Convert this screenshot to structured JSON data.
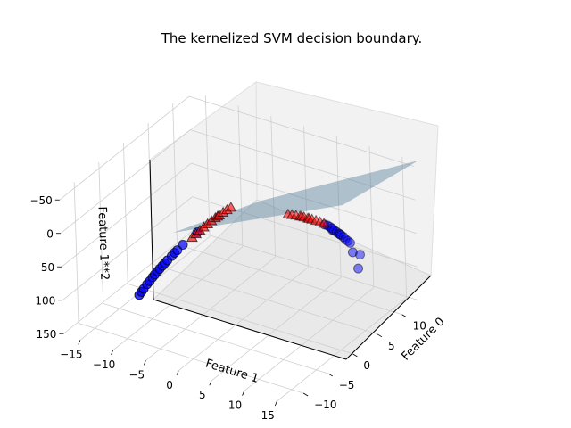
{
  "chart_data": {
    "type": "scatter3d",
    "title": "The kernelized SVM decision boundary.",
    "xlabel": "Feature 0",
    "ylabel": "Feature 1",
    "zlabel": "Feature 1**2",
    "x_ticks": [
      "−10",
      "−5",
      "0",
      "5",
      "10"
    ],
    "y_ticks": [
      "−15",
      "−10",
      "−5",
      "0",
      "5",
      "10",
      "15"
    ],
    "z_ticks": [
      "−50",
      "0",
      "50",
      "100",
      "150"
    ],
    "zlim": [
      -50,
      150
    ],
    "z_inverted": true,
    "grid": true,
    "surface": {
      "label": "decision boundary plane",
      "color": "#4a7595"
    },
    "series": [
      {
        "class": 0,
        "marker": "circle",
        "color": "#0000ff",
        "points": [
          [
            -7.2,
            -10.2,
            104.0
          ],
          [
            -7.0,
            -10.0,
            100.0
          ],
          [
            -6.8,
            -9.8,
            96.0
          ],
          [
            -6.5,
            -9.5,
            90.0
          ],
          [
            -6.2,
            -9.3,
            86.5
          ],
          [
            -6.0,
            -9.0,
            81.0
          ],
          [
            -5.8,
            -8.8,
            77.4
          ],
          [
            -5.5,
            -8.6,
            74.0
          ],
          [
            -5.3,
            -8.4,
            70.6
          ],
          [
            -5.0,
            -8.2,
            67.2
          ],
          [
            -4.8,
            -8.0,
            64.0
          ],
          [
            -4.5,
            -7.8,
            60.8
          ],
          [
            -4.0,
            -7.5,
            56.3
          ],
          [
            -3.8,
            -7.2,
            51.8
          ],
          [
            -3.5,
            -7.0,
            49.0
          ],
          [
            -3.0,
            -6.5,
            42.3
          ],
          [
            -2.0,
            -5.0,
            25.0
          ],
          [
            8.6,
            6.4,
            41.0
          ],
          [
            8.9,
            6.6,
            43.6
          ],
          [
            9.1,
            6.8,
            46.2
          ],
          [
            9.3,
            7.0,
            49.0
          ],
          [
            9.4,
            7.2,
            51.8
          ],
          [
            9.6,
            7.4,
            54.8
          ],
          [
            9.8,
            7.6,
            57.8
          ],
          [
            10.0,
            7.8,
            60.8
          ],
          [
            10.2,
            8.0,
            64.0
          ],
          [
            10.3,
            8.2,
            67.2
          ],
          [
            10.5,
            8.4,
            70.6
          ],
          [
            10.7,
            8.6,
            74.0
          ],
          [
            9.2,
            7.1,
            50.4
          ],
          [
            9.9,
            7.7,
            59.3
          ],
          [
            11.3,
            9.6,
            92.2
          ],
          [
            10.4,
            9.2,
            84.6
          ],
          [
            10.1,
            10.2,
            104.0
          ]
        ]
      },
      {
        "class": 1,
        "marker": "triangle",
        "color": "#ff0000",
        "points": [
          [
            -1.0,
            -6.6,
            43.6
          ],
          [
            -0.6,
            -6.3,
            39.7
          ],
          [
            -0.2,
            -6.0,
            36.0
          ],
          [
            0.2,
            -5.7,
            32.5
          ],
          [
            0.6,
            -5.4,
            29.2
          ],
          [
            1.0,
            -5.1,
            26.0
          ],
          [
            1.4,
            -4.8,
            23.0
          ],
          [
            1.8,
            -4.5,
            20.3
          ],
          [
            2.2,
            -4.2,
            17.6
          ],
          [
            2.6,
            -3.9,
            15.2
          ],
          [
            3.0,
            -3.6,
            13.0
          ],
          [
            1.6,
            -4.6,
            21.2
          ],
          [
            5.0,
            3.6,
            13.0
          ],
          [
            5.4,
            3.9,
            15.2
          ],
          [
            5.8,
            4.2,
            17.6
          ],
          [
            6.2,
            4.5,
            20.3
          ],
          [
            6.6,
            4.8,
            23.0
          ],
          [
            7.0,
            5.1,
            26.0
          ],
          [
            7.4,
            5.4,
            29.2
          ],
          [
            7.8,
            5.7,
            32.5
          ],
          [
            6.4,
            4.6,
            21.2
          ],
          [
            7.1,
            5.2,
            27.0
          ],
          [
            8.2,
            6.0,
            36.0
          ],
          [
            8.6,
            6.3,
            39.7
          ]
        ]
      }
    ]
  }
}
